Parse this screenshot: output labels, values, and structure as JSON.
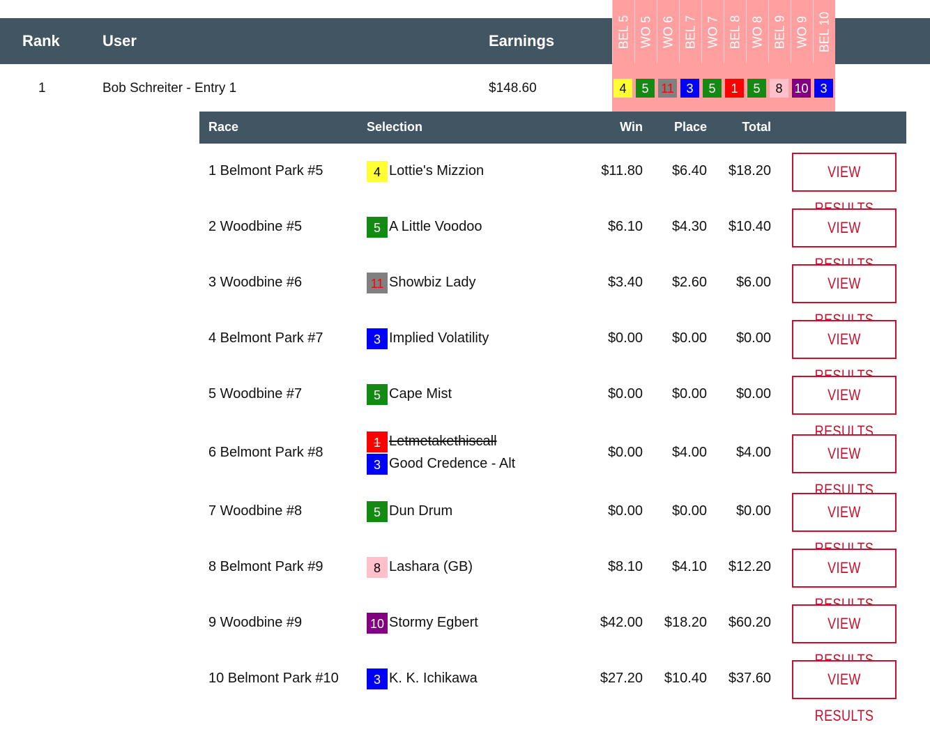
{
  "leaderboard": {
    "headers": {
      "rank": "Rank",
      "user": "User",
      "earnings": "Earnings"
    },
    "race_columns": [
      "BEL 5",
      "WO 5",
      "WO 6",
      "BEL 7",
      "WO 7",
      "BEL 8",
      "WO 8",
      "BEL 9",
      "WO 9",
      "BEL 10"
    ],
    "entry": {
      "rank": "1",
      "user": "Bob Schreiter - Entry 1",
      "earnings": "$148.60",
      "picks": [
        {
          "num": "4",
          "bg": "#ffff33",
          "fg": "#000000"
        },
        {
          "num": "5",
          "bg": "#138a13",
          "fg": "#ffffff"
        },
        {
          "num": "11",
          "bg": "#808080",
          "fg": "#ff0000"
        },
        {
          "num": "3",
          "bg": "#0000ff",
          "fg": "#ffffff"
        },
        {
          "num": "5",
          "bg": "#138a13",
          "fg": "#ffffff"
        },
        {
          "num": "1",
          "bg": "#ff0000",
          "fg": "#ffffff"
        },
        {
          "num": "5",
          "bg": "#138a13",
          "fg": "#ffffff"
        },
        {
          "num": "8",
          "bg": "#ffc0cb",
          "fg": "#000000"
        },
        {
          "num": "10",
          "bg": "#800080",
          "fg": "#ffffff"
        },
        {
          "num": "3",
          "bg": "#0000ff",
          "fg": "#ffffff"
        }
      ]
    }
  },
  "details": {
    "headers": {
      "race": "Race",
      "selection": "Selection",
      "win": "Win",
      "place": "Place",
      "total": "Total"
    },
    "button_label": "VIEW RESULTS",
    "rows": [
      {
        "race": "1 Belmont Park #5",
        "picks": [
          {
            "num": "4",
            "bg": "#ffff33",
            "fg": "#000000",
            "name": "Lottie's Mizzion",
            "scratched": false
          }
        ],
        "win": "$11.80",
        "place": "$6.40",
        "total": "$18.20"
      },
      {
        "race": "2 Woodbine #5",
        "picks": [
          {
            "num": "5",
            "bg": "#138a13",
            "fg": "#ffffff",
            "name": "A Little Voodoo",
            "scratched": false
          }
        ],
        "win": "$6.10",
        "place": "$4.30",
        "total": "$10.40"
      },
      {
        "race": "3 Woodbine #6",
        "picks": [
          {
            "num": "11",
            "bg": "#808080",
            "fg": "#ff0000",
            "name": "Showbiz Lady",
            "scratched": false
          }
        ],
        "win": "$3.40",
        "place": "$2.60",
        "total": "$6.00"
      },
      {
        "race": "4 Belmont Park #7",
        "picks": [
          {
            "num": "3",
            "bg": "#0000ff",
            "fg": "#ffffff",
            "name": "Implied Volatility",
            "scratched": false
          }
        ],
        "win": "$0.00",
        "place": "$0.00",
        "total": "$0.00"
      },
      {
        "race": "5 Woodbine #7",
        "picks": [
          {
            "num": "5",
            "bg": "#138a13",
            "fg": "#ffffff",
            "name": "Cape Mist",
            "scratched": false
          }
        ],
        "win": "$0.00",
        "place": "$0.00",
        "total": "$0.00"
      },
      {
        "race": "6 Belmont Park #8",
        "picks": [
          {
            "num": "1",
            "bg": "#ff0000",
            "fg": "#ffffff",
            "name": "Letmetakethiscall",
            "scratched": true
          },
          {
            "num": "3",
            "bg": "#0000ff",
            "fg": "#ffffff",
            "name": "Good Credence - Alt",
            "scratched": false
          }
        ],
        "win": "$0.00",
        "place": "$4.00",
        "total": "$4.00"
      },
      {
        "race": "7 Woodbine #8",
        "picks": [
          {
            "num": "5",
            "bg": "#138a13",
            "fg": "#ffffff",
            "name": "Dun Drum",
            "scratched": false
          }
        ],
        "win": "$0.00",
        "place": "$0.00",
        "total": "$0.00"
      },
      {
        "race": "8 Belmont Park #9",
        "picks": [
          {
            "num": "8",
            "bg": "#ffc0cb",
            "fg": "#000000",
            "name": "Lashara (GB)",
            "scratched": false
          }
        ],
        "win": "$8.10",
        "place": "$4.10",
        "total": "$12.20"
      },
      {
        "race": "9 Woodbine #9",
        "picks": [
          {
            "num": "10",
            "bg": "#800080",
            "fg": "#ffffff",
            "name": "Stormy Egbert",
            "scratched": false
          }
        ],
        "win": "$42.00",
        "place": "$18.20",
        "total": "$60.20"
      },
      {
        "race": "10 Belmont Park #10",
        "picks": [
          {
            "num": "3",
            "bg": "#0000ff",
            "fg": "#ffffff",
            "name": "K. K. Ichikawa",
            "scratched": false
          }
        ],
        "win": "$27.20",
        "place": "$10.40",
        "total": "$37.60"
      }
    ]
  }
}
